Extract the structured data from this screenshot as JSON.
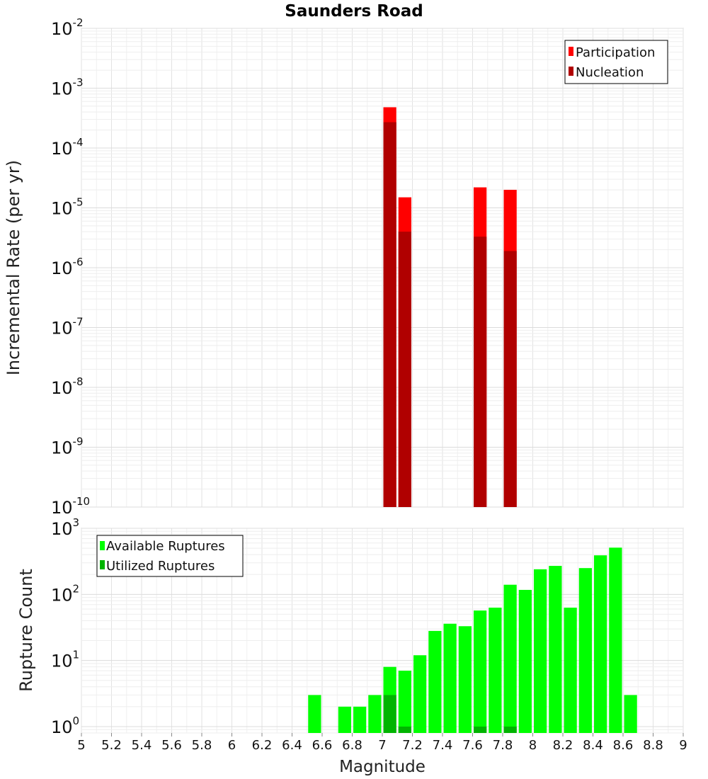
{
  "chart_data": [
    {
      "type": "bar",
      "title": "Saunders Road",
      "ylabel": "Incremental Rate (per yr)",
      "xlabel": "",
      "x_range": [
        5,
        9
      ],
      "y_scale": "log",
      "ylim": [
        1e-10,
        0.01
      ],
      "y_tick_labels": [
        "10-2",
        "10-3",
        "10-4",
        "10-5",
        "10-6",
        "10-7",
        "10-8",
        "10-9",
        "10-10"
      ],
      "grid": true,
      "legend_position": "top-right",
      "bar_width": 0.1,
      "series": [
        {
          "name": "Participation",
          "color": "#ff0000",
          "points": [
            {
              "x": 7.05,
              "y": 0.00048
            },
            {
              "x": 7.15,
              "y": 1.5e-05
            },
            {
              "x": 7.65,
              "y": 2.2e-05
            },
            {
              "x": 7.85,
              "y": 2e-05
            }
          ]
        },
        {
          "name": "Nucleation",
          "color": "#b00000",
          "points": [
            {
              "x": 7.05,
              "y": 0.00027
            },
            {
              "x": 7.15,
              "y": 4e-06
            },
            {
              "x": 7.65,
              "y": 3.3e-06
            },
            {
              "x": 7.85,
              "y": 1.9e-06
            }
          ]
        }
      ]
    },
    {
      "type": "bar",
      "title": "",
      "ylabel": "Rupture Count",
      "xlabel": "Magnitude",
      "x_range": [
        5,
        9
      ],
      "x_tick_labels": [
        "5",
        "5.2",
        "5.4",
        "5.6",
        "5.8",
        "6",
        "6.2",
        "6.4",
        "6.6",
        "6.8",
        "7",
        "7.2",
        "7.4",
        "7.6",
        "7.8",
        "8",
        "8.2",
        "8.4",
        "8.6",
        "8.8",
        "9"
      ],
      "y_scale": "log",
      "ylim": [
        0.8,
        1000
      ],
      "y_tick_labels": [
        "10^3",
        "10^2",
        "10^1",
        "10^0"
      ],
      "grid": true,
      "legend_position": "top-left",
      "bar_width": 0.1,
      "series": [
        {
          "name": "Available Ruptures",
          "color": "#00ff00",
          "points": [
            {
              "x": 6.55,
              "y": 3
            },
            {
              "x": 6.75,
              "y": 2
            },
            {
              "x": 6.85,
              "y": 2
            },
            {
              "x": 6.95,
              "y": 3
            },
            {
              "x": 7.05,
              "y": 8
            },
            {
              "x": 7.15,
              "y": 7
            },
            {
              "x": 7.25,
              "y": 12
            },
            {
              "x": 7.35,
              "y": 28
            },
            {
              "x": 7.45,
              "y": 36
            },
            {
              "x": 7.55,
              "y": 33
            },
            {
              "x": 7.65,
              "y": 57
            },
            {
              "x": 7.75,
              "y": 63
            },
            {
              "x": 7.85,
              "y": 140
            },
            {
              "x": 7.95,
              "y": 117
            },
            {
              "x": 8.05,
              "y": 240
            },
            {
              "x": 8.15,
              "y": 270
            },
            {
              "x": 8.25,
              "y": 63
            },
            {
              "x": 8.35,
              "y": 250
            },
            {
              "x": 8.45,
              "y": 390
            },
            {
              "x": 8.55,
              "y": 510
            },
            {
              "x": 8.65,
              "y": 3
            }
          ]
        },
        {
          "name": "Utilized Ruptures",
          "color": "#00b400",
          "points": [
            {
              "x": 7.05,
              "y": 3
            },
            {
              "x": 7.15,
              "y": 1
            },
            {
              "x": 7.65,
              "y": 1
            },
            {
              "x": 7.85,
              "y": 1
            }
          ]
        }
      ]
    }
  ]
}
